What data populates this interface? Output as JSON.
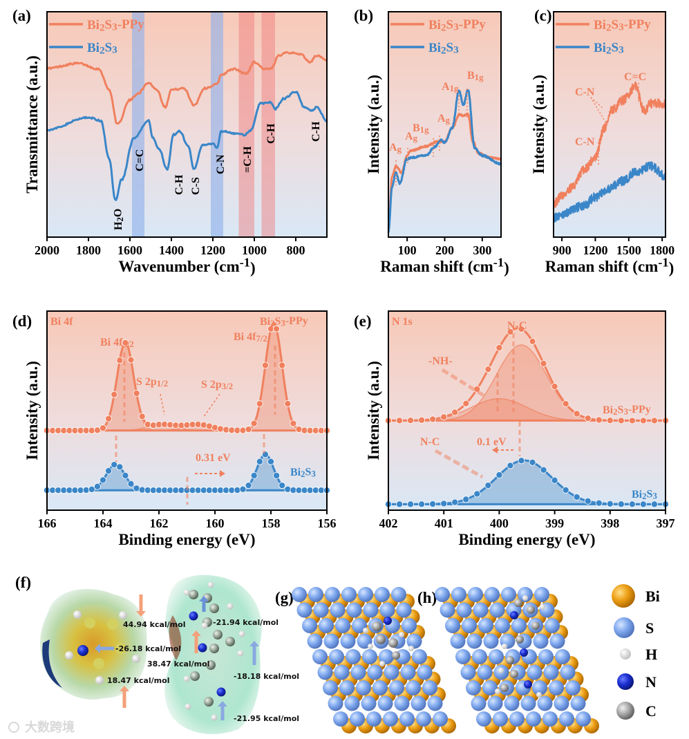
{
  "figure": {
    "panel_labels": [
      "(a)",
      "(b)",
      "(c)",
      "(d)",
      "(e)",
      "(f)",
      "(g)",
      "(h)"
    ],
    "colors": {
      "ppy": "#f0805e",
      "bi2s3": "#3a86c8",
      "bg_top": "#f7cbbb",
      "bg_bottom": "#dbe9f6",
      "bi_atom": "#e89a14",
      "s_atom": "#7fa8ee",
      "n_atom": "#1a2fd0",
      "c_atom": "#b8b8b8",
      "h_atom": "#f4f4f4"
    },
    "watermark": "大数跨境"
  },
  "chart_data": [
    {
      "id": "a",
      "type": "line",
      "title": "",
      "xlabel": "Wavenumber (cm^{-1})",
      "ylabel": "Transmittance (a.u.)",
      "xlim": [
        2000,
        650
      ],
      "ylim": [
        0,
        100
      ],
      "xticks": [
        2000,
        1800,
        1600,
        1400,
        1200,
        1000,
        800
      ],
      "legend": {
        "placement": "top-left",
        "entries": [
          "Bi_{2}S_{3}-PPy",
          "Bi_{2}S_{3}"
        ]
      },
      "bands": [
        {
          "label": "C=C",
          "range": [
            1590,
            1530
          ],
          "color": "blue"
        },
        {
          "label": "C-N",
          "range": [
            1210,
            1150
          ],
          "color": "blue"
        },
        {
          "label": "=C-H",
          "range": [
            1075,
            1000
          ],
          "color": "red"
        },
        {
          "label": "C-H",
          "range": [
            965,
            900
          ],
          "color": "red"
        }
      ],
      "annotations": [
        "H_{2}O",
        "C=C",
        "C-H",
        "C-S",
        "C-N",
        "=C-H",
        "C-H",
        "C-H"
      ],
      "series": [
        {
          "name": "Bi_{2}S_{3}-PPy",
          "x": [
            2000,
            1850,
            1750,
            1700,
            1660,
            1600,
            1560,
            1510,
            1470,
            1430,
            1400,
            1340,
            1290,
            1240,
            1180,
            1160,
            1100,
            1040,
            1000,
            950,
            920,
            880,
            850,
            780,
            730,
            700,
            650
          ],
          "y": [
            74.9,
            77.1,
            74.6,
            65.4,
            50.0,
            60.8,
            63.9,
            68.5,
            65.4,
            57.7,
            65.4,
            66.0,
            58.6,
            66.0,
            67.8,
            72.1,
            74.6,
            72.5,
            77.7,
            74.6,
            74.6,
            80.7,
            82.0,
            81.3,
            77.7,
            80.7,
            78.3
          ]
        },
        {
          "name": "Bi_{2}S_{3}",
          "x": [
            2000,
            1800,
            1740,
            1700,
            1670,
            1640,
            1580,
            1510,
            1490,
            1460,
            1420,
            1390,
            1360,
            1320,
            1290,
            1250,
            1200,
            1180,
            1160,
            1050,
            1020,
            970,
            920,
            900,
            860,
            800,
            760,
            720,
            700,
            650
          ],
          "y": [
            47.6,
            53.1,
            51.6,
            34.7,
            16.3,
            25.5,
            43.9,
            51.6,
            43.9,
            39.3,
            30.1,
            45.4,
            47.0,
            40.8,
            30.1,
            40.8,
            41.5,
            39.3,
            47.0,
            45.4,
            47.0,
            59.3,
            59.9,
            56.8,
            61.4,
            64.5,
            57.7,
            56.2,
            57.7,
            51.6
          ]
        }
      ]
    },
    {
      "id": "b",
      "type": "line",
      "xlabel": "Raman shift (cm^{-1})",
      "ylabel": "Intensity (a.u.)",
      "xlim": [
        50,
        350
      ],
      "ylim": [
        0,
        100
      ],
      "xticks": [
        100,
        200,
        300
      ],
      "legend": {
        "placement": "top-left",
        "entries": [
          "Bi_{2}S_{3}-PPy",
          "Bi_{2}S_{3}"
        ]
      },
      "annotations": [
        "A_{g}",
        "A_{g}",
        "B_{1g}",
        "A_{g}",
        "A_{1g}",
        "B_{1g}"
      ],
      "peak_positions": [
        70,
        100,
        170,
        188,
        238,
        262
      ],
      "series": [
        {
          "name": "Bi_{2}S_{3}-PPy",
          "x": [
            50,
            60,
            70,
            85,
            100,
            110,
            150,
            180,
            200,
            220,
            240,
            250,
            262,
            275,
            290,
            320,
            350
          ],
          "y": [
            4,
            27.0,
            31.6,
            28.6,
            36.2,
            38.4,
            40.2,
            42.4,
            42.4,
            48.5,
            54.6,
            53.7,
            54.6,
            42.4,
            37.2,
            35.3,
            34.7
          ]
        },
        {
          "name": "Bi_{2}S_{3}",
          "x": [
            50,
            60,
            70,
            80,
            100,
            110,
            150,
            175,
            190,
            200,
            220,
            238,
            250,
            262,
            280,
            300,
            350
          ],
          "y": [
            2.5,
            22.4,
            28.6,
            23.9,
            34.7,
            35.3,
            36.2,
            40.2,
            43.3,
            41.8,
            48.5,
            64.8,
            58.6,
            65.4,
            39.3,
            36.2,
            32.5
          ]
        }
      ]
    },
    {
      "id": "c",
      "type": "line",
      "xlabel": "Raman shift (cm^{-1})",
      "ylabel": "Intensity (a.u.)",
      "xlim": [
        825,
        1830
      ],
      "ylim": [
        0,
        100
      ],
      "xticks": [
        900,
        1200,
        1500,
        1800
      ],
      "legend": {
        "placement": "top-left",
        "entries": [
          "Bi_{2}S_{3}-PPy",
          "Bi_{2}S_{3}"
        ]
      },
      "annotations": [
        "C-N",
        "C-N",
        "C=C"
      ],
      "peak_positions": [
        1210,
        1300,
        1565
      ],
      "series": [
        {
          "name": "Bi_{2}S_{3}-PPy",
          "x": [
            825,
            900,
            1000,
            1100,
            1200,
            1280,
            1350,
            1450,
            1560,
            1640,
            1700,
            1830
          ],
          "y": [
            14.7,
            18.4,
            22.4,
            30.1,
            35.3,
            48.5,
            56.2,
            60.8,
            66.9,
            56.2,
            59.3,
            59.3
          ]
        },
        {
          "name": "Bi_{2}S_{3}",
          "x": [
            825,
            900,
            1000,
            1100,
            1200,
            1300,
            1450,
            1550,
            1700,
            1830
          ],
          "y": [
            8.6,
            9.5,
            12.6,
            14.1,
            17.8,
            20.9,
            24.9,
            28.6,
            31.6,
            27.0
          ]
        }
      ]
    },
    {
      "id": "d",
      "type": "line",
      "xlabel": "Binding energy (eV)",
      "ylabel": "Intensity (a.u.)",
      "xlim": [
        166,
        156
      ],
      "ylim": [
        0,
        100
      ],
      "xticks": [
        166,
        164,
        162,
        160,
        158,
        156
      ],
      "region": "Bi 4f",
      "annotations": [
        "Bi 4f_{5/2}",
        "Bi 4f_{7/2}",
        "S 2p_{1/2}",
        "S 2p_{3/2}",
        "0.31 eV"
      ],
      "series": [
        {
          "name": "Bi_{2}S_{3}-PPy",
          "baseline": 40,
          "peaks": [
            {
              "label": "Bi 4f5/2",
              "center": 163.2,
              "amplitude": 44,
              "sigma": 0.3
            },
            {
              "label": "Bi 4f7/2",
              "center": 157.9,
              "amplitude": 54,
              "sigma": 0.3
            },
            {
              "label": "S 2p1/2",
              "center": 161.9,
              "amplitude": 3,
              "sigma": 0.5
            },
            {
              "label": "S 2p3/2",
              "center": 160.6,
              "amplitude": 3,
              "sigma": 0.5
            }
          ]
        },
        {
          "name": "Bi_{2}S_{3}",
          "baseline": 10,
          "peaks": [
            {
              "label": "Bi 4f5/2",
              "center": 163.55,
              "amplitude": 13,
              "sigma": 0.33
            },
            {
              "label": "Bi 4f7/2",
              "center": 158.2,
              "amplitude": 18,
              "sigma": 0.3
            }
          ]
        }
      ]
    },
    {
      "id": "e",
      "type": "line",
      "xlabel": "Binding energy (eV)",
      "ylabel": "Intensity (a.u.)",
      "xlim": [
        402,
        397
      ],
      "ylim": [
        0,
        100
      ],
      "xticks": [
        402,
        401,
        400,
        399,
        398,
        397
      ],
      "region": "N 1s",
      "annotations": [
        "N-C",
        "-NH-",
        "N-C",
        "0.1 eV"
      ],
      "series": [
        {
          "name": "Bi_{2}S_{3}-PPy",
          "baseline": 45,
          "peaks": [
            {
              "label": "-NH-",
              "center": 400.0,
              "amplitude": 11,
              "sigma": 0.5
            },
            {
              "label": "N-C",
              "center": 399.6,
              "amplitude": 38,
              "sigma": 0.45
            }
          ]
        },
        {
          "name": "Bi_{2}S_{3}",
          "baseline": 3,
          "peaks": [
            {
              "label": "N-C",
              "center": 399.55,
              "amplitude": 22,
              "sigma": 0.5
            }
          ]
        }
      ]
    }
  ],
  "panel_f": {
    "values": [
      "44.94 kcal/mol",
      "-26.18 kcal/mol",
      "38.47 kcal/mol",
      "18.47 kcal/mol",
      "-21.94 kcal/mol",
      "-18.18 kcal/mol",
      "-21.95 kcal/mol"
    ]
  },
  "atom_legend": [
    "Bi",
    "S",
    "H",
    "N",
    "C"
  ]
}
